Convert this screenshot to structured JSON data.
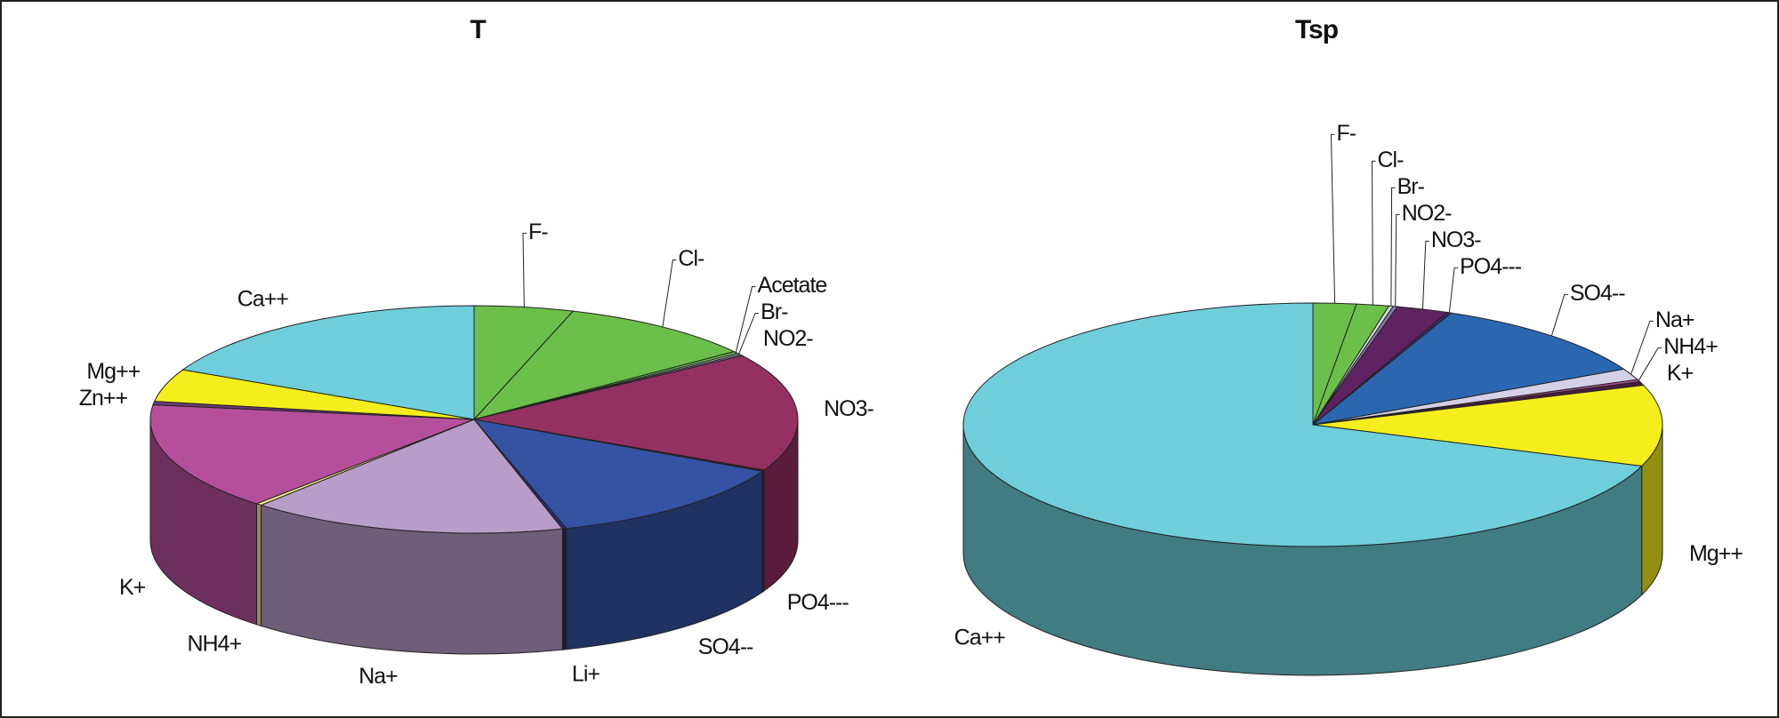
{
  "chart_data": [
    {
      "type": "pie",
      "title": "T",
      "categories": [
        "F-",
        "Cl-",
        "Acetate",
        "Br-",
        "NO2-",
        "NO3-",
        "PO4---",
        "SO4--",
        "Li+",
        "Na+",
        "NH4+",
        "K+",
        "Zn++",
        "Mg++",
        "Ca++"
      ],
      "values": [
        5.0,
        10.0,
        0.3,
        0.2,
        0.2,
        17.0,
        0.2,
        13.0,
        0.2,
        16.0,
        0.3,
        15.5,
        0.5,
        4.7,
        18.0
      ],
      "colors": [
        "#6bbf4a",
        "#6bbf4a",
        "#6bbf4a",
        "#d6d6d6",
        "#8b7bb5",
        "#953062",
        "#4a1d3d",
        "#3553a3",
        "#2a2a6e",
        "#b89dc9",
        "#f4ea8a",
        "#b54f9c",
        "#6b3a73",
        "#f4ee1d",
        "#6ecedb"
      ]
    },
    {
      "type": "pie",
      "title": "Tsp",
      "categories": [
        "F-",
        "Cl-",
        "Br-",
        "NO2-",
        "NO3-",
        "PO4---",
        "SO4--",
        "Na+",
        "NH4+",
        "K+",
        "Mg++",
        "Ca++"
      ],
      "values": [
        2.0,
        1.5,
        0.2,
        0.2,
        2.4,
        0.2,
        11.0,
        1.5,
        0.3,
        0.5,
        10.8,
        69.7
      ],
      "colors": [
        "#6bbf4a",
        "#6bbf4a",
        "#d6d6d6",
        "#8b7bb5",
        "#612264",
        "#3b2a6b",
        "#2b67b0",
        "#d4d0e8",
        "#b54f9c",
        "#4a1d3d",
        "#f4ee1d",
        "#6ecedb"
      ]
    }
  ]
}
